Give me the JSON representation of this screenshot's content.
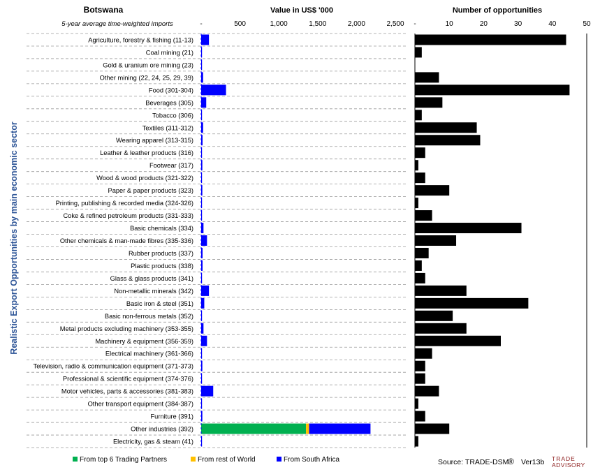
{
  "chart_data": [
    {
      "type": "bar",
      "orientation": "horizontal",
      "stacked": true,
      "title": "Botswana",
      "subtitle": "5-year average time-weighted imports",
      "xlabel": "Value in US$ '000",
      "ylabel": "Realistic Export Opportunities by main economic sector",
      "xlim": [
        0,
        2500
      ],
      "xticks": [
        "-",
        "500",
        "1,000",
        "1,500",
        "2,000",
        "2,500"
      ],
      "categories": [
        "Agriculture, forestry & fishing (11-13)",
        "Coal mining (21)",
        "Gold & uranium ore mining (23)",
        "Other mining (22, 24, 25, 29, 39)",
        "Food (301-304)",
        "Beverages (305)",
        "Tobacco (306)",
        "Textiles (311-312)",
        "Wearing apparel (313-315)",
        "Leather & leather products (316)",
        "Footwear (317)",
        "Wood & wood products (321-322)",
        "Paper & paper products (323)",
        "Printing, publishing & recorded media (324-326)",
        "Coke & refined petroleum products (331-333)",
        "Basic chemicals (334)",
        "Other chemicals & man-made fibres (335-336)",
        "Rubber products (337)",
        "Plastic products (338)",
        "Glass & glass products (341)",
        "Non-metallic minerals (342)",
        "Basic iron & steel (351)",
        "Basic non-ferrous metals (352)",
        "Metal products excluding machinery (353-355)",
        "Machinery & equipment (356-359)",
        "Electrical machinery (361-366)",
        "Television, radio & communication equipment (371-373)",
        "Professional & scientific equipment (374-376)",
        "Motor vehicles, parts & accessories (381-383)",
        "Other transport equipment (384-387)",
        "Furniture (391)",
        "Other industries (392)",
        "Electricity, gas & steam (41)"
      ],
      "series": [
        {
          "name": "From top 6 Trading Partners",
          "color": "#00b050",
          "values": [
            0,
            0,
            0,
            0,
            0,
            0,
            0,
            0,
            0,
            0,
            0,
            0,
            0,
            0,
            0,
            0,
            0,
            0,
            0,
            0,
            0,
            0,
            0,
            0,
            0,
            0,
            0,
            0,
            0,
            0,
            0,
            1350,
            0
          ]
        },
        {
          "name": "From rest of World",
          "color": "#ffc000",
          "values": [
            0,
            0,
            0,
            0,
            0,
            0,
            0,
            0,
            0,
            0,
            0,
            0,
            0,
            0,
            0,
            0,
            0,
            0,
            0,
            0,
            0,
            0,
            0,
            0,
            0,
            0,
            0,
            0,
            0,
            0,
            0,
            40,
            0
          ]
        },
        {
          "name": "From South Africa",
          "color": "#0000ff",
          "values": [
            100,
            2,
            1,
            25,
            320,
            65,
            3,
            25,
            18,
            6,
            15,
            6,
            15,
            3,
            5,
            30,
            75,
            18,
            18,
            6,
            100,
            40,
            5,
            30,
            75,
            8,
            15,
            8,
            155,
            6,
            15,
            790,
            6
          ]
        }
      ],
      "legend_position": "bottom-left"
    },
    {
      "type": "bar",
      "orientation": "horizontal",
      "title": "Number of opportunities",
      "xlim": [
        0,
        50
      ],
      "xticks": [
        "-",
        "10",
        "20",
        "30",
        "40",
        "50"
      ],
      "series": [
        {
          "color": "#000000",
          "values": [
            44,
            2,
            0,
            7,
            45,
            8,
            2,
            18,
            19,
            3,
            1,
            3,
            10,
            1,
            5,
            31,
            12,
            4,
            2,
            3,
            15,
            33,
            11,
            15,
            25,
            5,
            3,
            3,
            7,
            1,
            3,
            10,
            1
          ]
        }
      ]
    }
  ],
  "footer": {
    "source": "Source: TRADE-DSM",
    "registered": "®",
    "version": "Ver13b",
    "logo_line1": "TRADE",
    "logo_line2": "ADVISORY"
  }
}
